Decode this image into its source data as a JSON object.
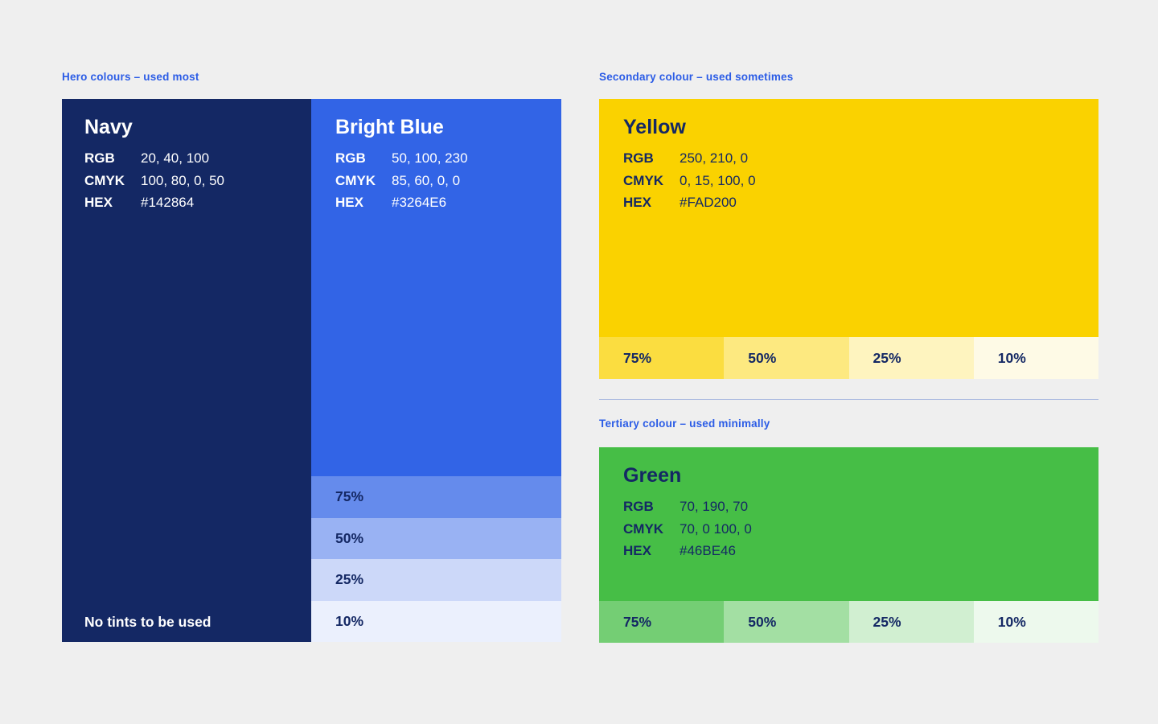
{
  "page": {
    "background": "#EFEFEF",
    "heading_color": "#2B5CE6",
    "divider_color": "#A8B8DF",
    "dark_text": "#142864",
    "light_text": "#FFFFFF"
  },
  "hero": {
    "heading": "Hero colours – used most",
    "navy": {
      "title": "Navy",
      "color": "#142864",
      "specs": [
        {
          "label": "RGB",
          "value": "20, 40, 100"
        },
        {
          "label": "CMYK",
          "value": "100, 80, 0, 50"
        },
        {
          "label": "HEX",
          "value": "#142864"
        }
      ],
      "note": "No tints to be used"
    },
    "bright_blue": {
      "title": "Bright Blue",
      "color": "#3264E6",
      "specs": [
        {
          "label": "RGB",
          "value": "50, 100, 230"
        },
        {
          "label": "CMYK",
          "value": "85, 60, 0, 0"
        },
        {
          "label": "HEX",
          "value": "#3264E6"
        }
      ],
      "tints": [
        {
          "label": "75%",
          "color": "#658BEC"
        },
        {
          "label": "50%",
          "color": "#99B2F3"
        },
        {
          "label": "25%",
          "color": "#CCD8F9"
        },
        {
          "label": "10%",
          "color": "#EBF0FD"
        }
      ]
    }
  },
  "secondary": {
    "heading": "Secondary colour – used sometimes",
    "yellow": {
      "title": "Yellow",
      "color": "#FAD200",
      "specs": [
        {
          "label": "RGB",
          "value": "250, 210, 0"
        },
        {
          "label": "CMYK",
          "value": "0, 15, 100, 0"
        },
        {
          "label": "HEX",
          "value": "#FAD200"
        }
      ],
      "tints": [
        {
          "label": "75%",
          "color": "#FBDD40"
        },
        {
          "label": "50%",
          "color": "#FDE980"
        },
        {
          "label": "25%",
          "color": "#FEF4BF"
        },
        {
          "label": "10%",
          "color": "#FEFAE6"
        }
      ]
    }
  },
  "tertiary": {
    "heading": "Tertiary colour – used minimally",
    "green": {
      "title": "Green",
      "color": "#46BE46",
      "specs": [
        {
          "label": "RGB",
          "value": "70, 190, 70"
        },
        {
          "label": "CMYK",
          "value": "70, 0 100, 0"
        },
        {
          "label": "HEX",
          "value": "#46BE46"
        }
      ],
      "tints": [
        {
          "label": "75%",
          "color": "#74CE74"
        },
        {
          "label": "50%",
          "color": "#A3DFA3"
        },
        {
          "label": "25%",
          "color": "#D1EFD1"
        },
        {
          "label": "10%",
          "color": "#EDF9ED"
        }
      ]
    }
  }
}
